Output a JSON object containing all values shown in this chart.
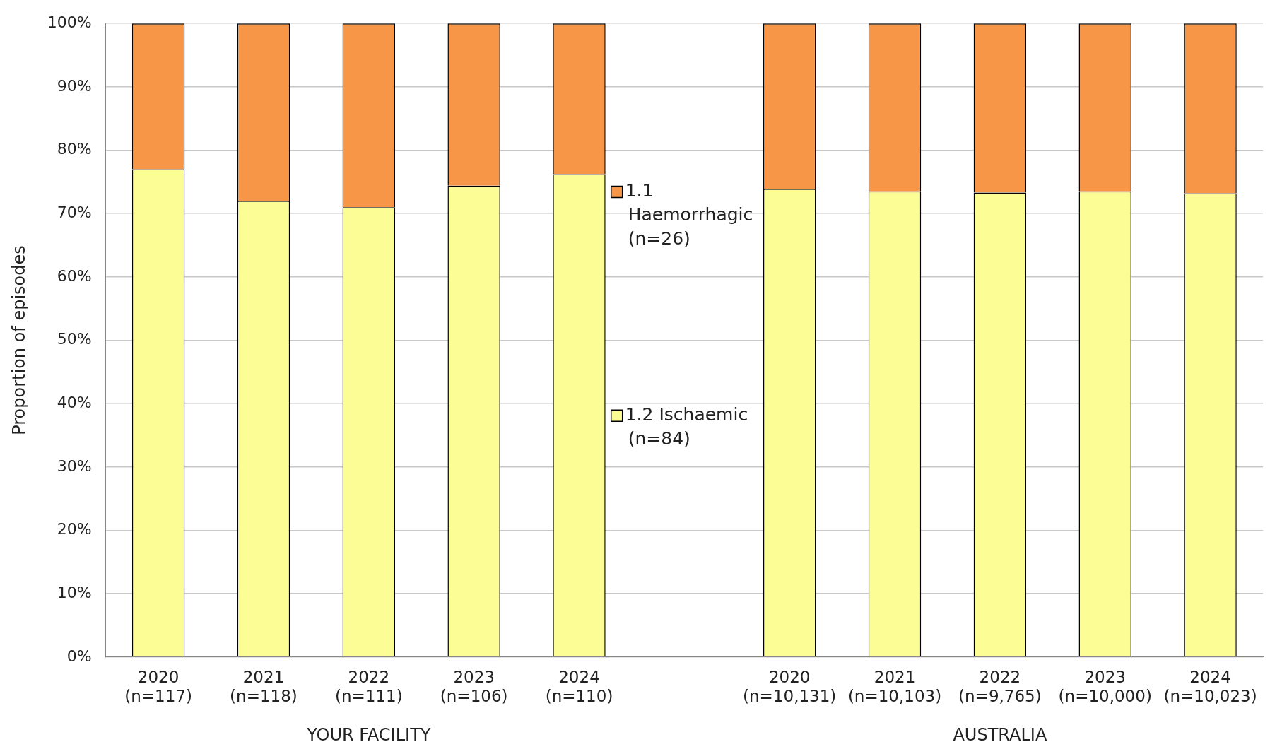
{
  "chart_data": {
    "type": "bar",
    "stacked": true,
    "categories": [
      "2020 (n=117)",
      "2021 (n=118)",
      "2022 (n=111)",
      "2023 (n=106)",
      "2024 (n=110)",
      null,
      "2020 (n=10,131)",
      "2021 (n=10,103)",
      "2022 (n=9,765)",
      "2023 (n=10,000)",
      "2024 (n=10,023)"
    ],
    "series": [
      {
        "name": "1.2 Ischaemic (n=84)",
        "color": "#fdfd96",
        "values": [
          77,
          72,
          71,
          74.4,
          76.2,
          null,
          73.9,
          73.5,
          73.3,
          73.5,
          73.2
        ]
      },
      {
        "name": "1.1 Haemorrhagic (n=26)",
        "color": "#f79646",
        "values": [
          23,
          28,
          29,
          25.6,
          23.8,
          null,
          26.1,
          26.5,
          26.7,
          26.5,
          26.8
        ]
      }
    ],
    "ylabel": "Proportion of episodes",
    "ylim": [
      0,
      100
    ],
    "yticks": [
      {
        "value": 0,
        "label": "0%"
      },
      {
        "value": 10,
        "label": "10%"
      },
      {
        "value": 20,
        "label": "20%"
      },
      {
        "value": 30,
        "label": "30%"
      },
      {
        "value": 40,
        "label": "40%"
      },
      {
        "value": 50,
        "label": "50%"
      },
      {
        "value": 60,
        "label": "60%"
      },
      {
        "value": 70,
        "label": "70%"
      },
      {
        "value": 80,
        "label": "80%"
      },
      {
        "value": 90,
        "label": "90%"
      },
      {
        "value": 100,
        "label": "100%"
      }
    ],
    "grid": "y",
    "legend": "center",
    "annotations": [
      "YOUR FACILITY",
      "AUSTRALIA"
    ]
  }
}
